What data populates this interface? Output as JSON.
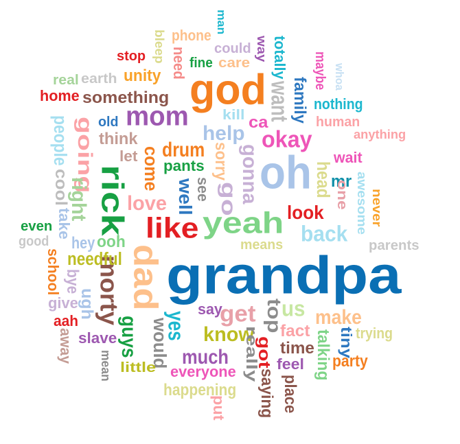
{
  "words": [
    {
      "text": "grandpa",
      "color": "#0a6fb4"
    },
    {
      "text": "oh",
      "color": "#a9c4e8"
    },
    {
      "text": "god",
      "color": "#f47f20"
    },
    {
      "text": "yeah",
      "color": "#7ed487"
    },
    {
      "text": "dad",
      "color": "#fdc08b"
    },
    {
      "text": "rick",
      "color": "#17a043"
    },
    {
      "text": "like",
      "color": "#e31f23"
    },
    {
      "text": "mom",
      "color": "#9d58b0"
    },
    {
      "text": "going",
      "color": "#fba2a6"
    },
    {
      "text": "morty",
      "color": "#8b554b"
    },
    {
      "text": "okay",
      "color": "#ee55b8"
    },
    {
      "text": "want",
      "color": "#bdbdbd"
    },
    {
      "text": "something",
      "color": "#8b554b"
    },
    {
      "text": "make",
      "color": "#fdc08b"
    },
    {
      "text": "back",
      "color": "#a5dff0"
    },
    {
      "text": "top",
      "color": "#8c8c8c"
    },
    {
      "text": "get",
      "color": "#e8a0a8"
    },
    {
      "text": "know",
      "color": "#bcbd22"
    },
    {
      "text": "much",
      "color": "#9d58b0"
    },
    {
      "text": "love",
      "color": "#fba2a6"
    },
    {
      "text": "gonna",
      "color": "#c7b0d5"
    },
    {
      "text": "go",
      "color": "#c7b0d5"
    },
    {
      "text": "help",
      "color": "#a9c4e8"
    },
    {
      "text": "drum",
      "color": "#f47f20"
    },
    {
      "text": "look",
      "color": "#e31f23"
    },
    {
      "text": "us",
      "color": "#c7e7a2"
    },
    {
      "text": "yes",
      "color": "#1cb7ce"
    },
    {
      "text": "would",
      "color": "#8c8c8c"
    },
    {
      "text": "guys",
      "color": "#17a043"
    },
    {
      "text": "needful",
      "color": "#bcbd22"
    },
    {
      "text": "pants",
      "color": "#17a043"
    },
    {
      "text": "come",
      "color": "#f47f20"
    },
    {
      "text": "well",
      "color": "#2e78c0"
    },
    {
      "text": "sorry",
      "color": "#fdc08b"
    },
    {
      "text": "head",
      "color": "#dbdb8d"
    },
    {
      "text": "family",
      "color": "#2e78c0"
    },
    {
      "text": "nothing",
      "color": "#1cb7ce"
    },
    {
      "text": "unity",
      "color": "#f9a229"
    },
    {
      "text": "home",
      "color": "#e31f23"
    },
    {
      "text": "stop",
      "color": "#e31f23"
    },
    {
      "text": "phone",
      "color": "#fdc08b"
    },
    {
      "text": "need",
      "color": "#f58b89"
    },
    {
      "text": "fine",
      "color": "#17a043"
    },
    {
      "text": "could",
      "color": "#c7b0d5"
    },
    {
      "text": "care",
      "color": "#fdc08b"
    },
    {
      "text": "way",
      "color": "#9d58b0"
    },
    {
      "text": "totally",
      "color": "#1cb7ce"
    },
    {
      "text": "maybe",
      "color": "#ee55b8"
    },
    {
      "text": "whoa",
      "color": "#c7e0f3"
    },
    {
      "text": "earth",
      "color": "#c8c8c8"
    },
    {
      "text": "real",
      "color": "#a5d49a"
    },
    {
      "text": "man",
      "color": "#1cb7ce"
    },
    {
      "text": "bleep",
      "color": "#dbdb8d"
    },
    {
      "text": "old",
      "color": "#2e78c0"
    },
    {
      "text": "think",
      "color": "#c49c94"
    },
    {
      "text": "let",
      "color": "#c49c94"
    },
    {
      "text": "kill",
      "color": "#a5dff0"
    },
    {
      "text": "ca",
      "color": "#ee55b8"
    },
    {
      "text": "human",
      "color": "#fba2a6"
    },
    {
      "text": "anything",
      "color": "#fba2a6"
    },
    {
      "text": "wait",
      "color": "#ee55b8"
    },
    {
      "text": "mr",
      "color": "#0f8fa8"
    },
    {
      "text": "one",
      "color": "#e8a0a8"
    },
    {
      "text": "awesome",
      "color": "#a5dff0"
    },
    {
      "text": "never",
      "color": "#f9a229"
    },
    {
      "text": "parents",
      "color": "#c8c8c8"
    },
    {
      "text": "people",
      "color": "#a5dff0"
    },
    {
      "text": "cool",
      "color": "#bdbdbd"
    },
    {
      "text": "right",
      "color": "#a5d49a"
    },
    {
      "text": "take",
      "color": "#a9c4e8"
    },
    {
      "text": "even",
      "color": "#17a043"
    },
    {
      "text": "good",
      "color": "#c8c8c8"
    },
    {
      "text": "hey",
      "color": "#a9c4e8"
    },
    {
      "text": "ooh",
      "color": "#7ed487"
    },
    {
      "text": "see",
      "color": "#8c8c8c"
    },
    {
      "text": "means",
      "color": "#dbdb8d"
    },
    {
      "text": "school",
      "color": "#f47f20"
    },
    {
      "text": "bye",
      "color": "#c7b0d5"
    },
    {
      "text": "ugh",
      "color": "#a9c4e8"
    },
    {
      "text": "give",
      "color": "#c7b0d5"
    },
    {
      "text": "aah",
      "color": "#e31f23"
    },
    {
      "text": "away",
      "color": "#c49c94"
    },
    {
      "text": "slave",
      "color": "#9d58b0"
    },
    {
      "text": "mean",
      "color": "#8c8c8c"
    },
    {
      "text": "little",
      "color": "#bcbd22"
    },
    {
      "text": "say",
      "color": "#9d58b0"
    },
    {
      "text": "everyone",
      "color": "#ee55b8"
    },
    {
      "text": "happening",
      "color": "#dbdb8d"
    },
    {
      "text": "put",
      "color": "#fba2a6"
    },
    {
      "text": "really",
      "color": "#8c8c8c"
    },
    {
      "text": "got",
      "color": "#e31f23"
    },
    {
      "text": "saying",
      "color": "#8b554b"
    },
    {
      "text": "fact",
      "color": "#fba2a6"
    },
    {
      "text": "time",
      "color": "#8b554b"
    },
    {
      "text": "feel",
      "color": "#9d58b0"
    },
    {
      "text": "place",
      "color": "#8b554b"
    },
    {
      "text": "talking",
      "color": "#7ed487"
    },
    {
      "text": "tiny",
      "color": "#2e78c0"
    },
    {
      "text": "trying",
      "color": "#dbdb8d"
    },
    {
      "text": "party",
      "color": "#f47f20"
    }
  ]
}
